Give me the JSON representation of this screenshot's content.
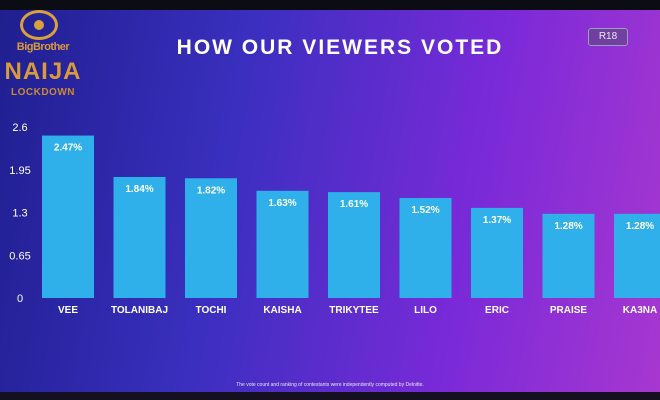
{
  "logo": {
    "line1": "BigBrother",
    "line2": "NAIJA",
    "line3": "LOCKDOWN"
  },
  "rating_badge": "R18",
  "footnote": "The vote count and ranking of contestants were independently computed by Deloitte.",
  "colors": {
    "bar": "#2fb0ea",
    "text": "#ffffff",
    "logo_gold": "#d89a3a"
  },
  "chart_data": {
    "type": "bar",
    "title": "HOW OUR VIEWERS VOTED",
    "xlabel": "",
    "ylabel": "",
    "categories": [
      "VEE",
      "TOLANIBAJ",
      "TOCHI",
      "KAISHA",
      "TRIKYTEE",
      "LILO",
      "ERIC",
      "PRAISE",
      "KA3NA"
    ],
    "values": [
      2.47,
      1.84,
      1.82,
      1.63,
      1.61,
      1.52,
      1.37,
      1.28,
      1.28
    ],
    "data_labels": [
      "2.47%",
      "1.84%",
      "1.82%",
      "1.63%",
      "1.61%",
      "1.52%",
      "1.37%",
      "1.28%",
      "1.28%"
    ],
    "yticks": [
      0,
      0.65,
      1.3,
      1.95,
      2.6
    ],
    "ytick_labels": [
      "0",
      "0.65",
      "1.3",
      "1.95",
      "2.6"
    ],
    "ylim": [
      0,
      2.6
    ],
    "grid": false,
    "legend": "none"
  }
}
